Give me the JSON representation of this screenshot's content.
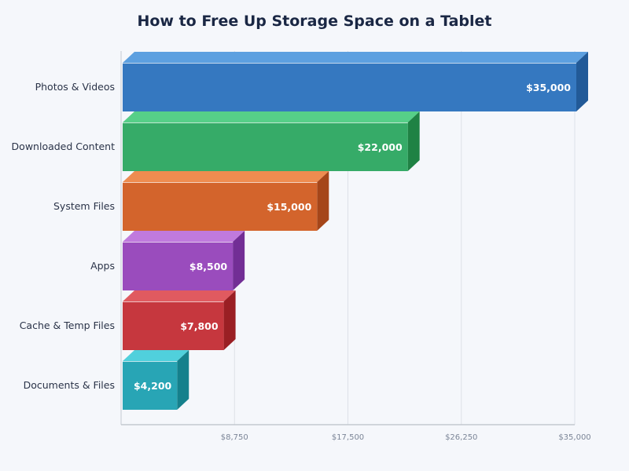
{
  "chart_data": {
    "type": "bar",
    "orientation": "horizontal",
    "style": "3d",
    "title": "How to Free Up Storage Space on a Tablet",
    "categories": [
      "Photos & Videos",
      "Downloaded Content",
      "System Files",
      "Apps",
      "Cache & Temp Files",
      "Documents & Files"
    ],
    "values": [
      35000,
      22000,
      15000,
      8500,
      7800,
      4200
    ],
    "data_labels": [
      "$35,000",
      "$22,000",
      "$15,000",
      "$8,500",
      "$7,800",
      "$4,200"
    ],
    "colors": [
      "#3578c0",
      "#36ab68",
      "#d3642c",
      "#9a4cbd",
      "#c6373e",
      "#28a5b5"
    ],
    "top_colors": [
      "#5da0e0",
      "#56cf88",
      "#ee8c50",
      "#c07add",
      "#e05a60",
      "#50d0dc"
    ],
    "side_colors": [
      "#225a98",
      "#1f8244",
      "#a5461a",
      "#722e95",
      "#9a1f24",
      "#15808c"
    ],
    "xlim": [
      0,
      35000
    ],
    "xticks": [
      8750,
      17500,
      26250,
      35000
    ],
    "xtick_labels": [
      "$8,750",
      "$17,500",
      "$26,250",
      "$35,000"
    ],
    "xlabel": "",
    "ylabel": "",
    "grid": true
  }
}
